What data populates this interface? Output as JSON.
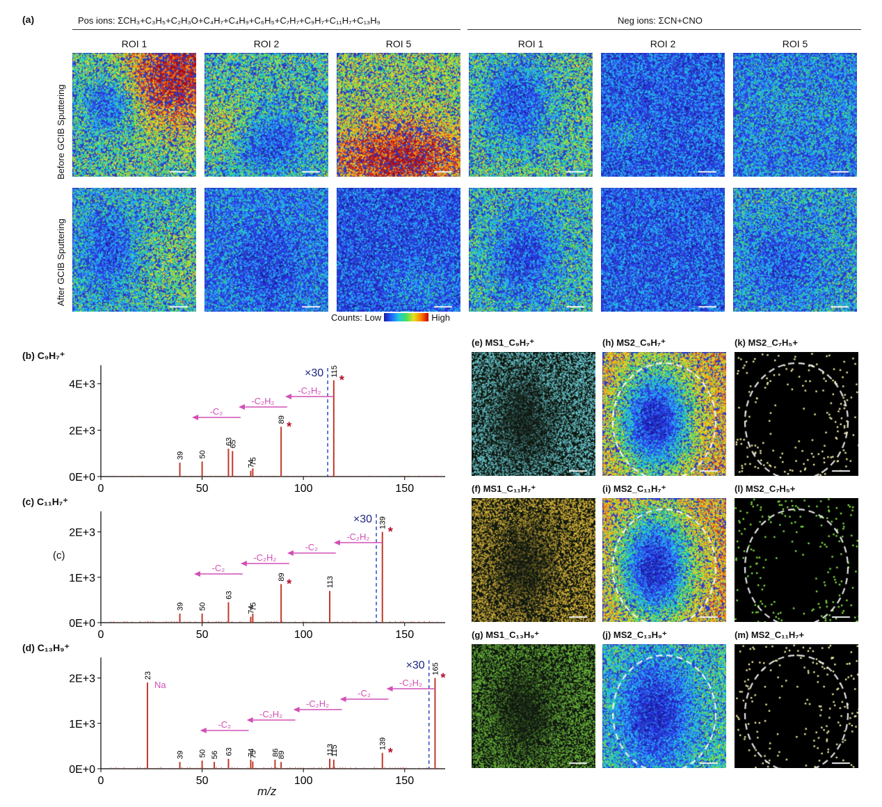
{
  "panel_a": {
    "label": "(a)",
    "pos_header": "Pos ions: ΣCH₃+C₃H₅+C₂H₃O+C₄H₇+C₄H₉+C₆H₅+C₇H₇+C₉H₇+C₁₁H₇+C₁₃H₉",
    "neg_header": "Neg ions: ΣCN+CNO",
    "roi_labels": [
      "ROI 1",
      "ROI 2",
      "ROI 5",
      "ROI 1",
      "ROI 2",
      "ROI 5"
    ],
    "row_labels": [
      "Before GCIB Sputtering",
      "After GCIB Sputtering"
    ],
    "colorbar": {
      "prefix": "Counts: Low",
      "suffix": "High"
    }
  },
  "spectra": {
    "xlabel": "m/z",
    "panels": [
      {
        "label": "(b) C₉H₇⁺",
        "magnify": "×30"
      },
      {
        "label": "(c) C₁₁H₇⁺",
        "magnify": "×30",
        "inner_label": "(c)"
      },
      {
        "label": "(d) C₁₃H₉⁺",
        "magnify": "×30",
        "na_label": "Na"
      }
    ]
  },
  "chart_data": [
    {
      "type": "bar",
      "title": "(b) C₉H₇⁺",
      "xlabel": "m/z",
      "ylabel": "",
      "xlim": [
        0,
        170
      ],
      "ylim": [
        0,
        4500
      ],
      "yticks": [
        "0E+0",
        "2E+3",
        "4E+3"
      ],
      "xticks": [
        "0",
        "50",
        "100",
        "150"
      ],
      "peaks": [
        {
          "x": 39,
          "y": 600,
          "label": "39"
        },
        {
          "x": 50,
          "y": 650,
          "label": "50"
        },
        {
          "x": 63,
          "y": 1200,
          "label": "63"
        },
        {
          "x": 65,
          "y": 1100,
          "label": "65"
        },
        {
          "x": 74,
          "y": 250,
          "label": "74"
        },
        {
          "x": 75,
          "y": 350,
          "label": "75"
        },
        {
          "x": 89,
          "y": 2150,
          "label": "89",
          "star": true
        },
        {
          "x": 115,
          "y": 4150,
          "label": "115",
          "star": true
        }
      ],
      "dashed_x": 112,
      "annotations": [
        "-C₂H₂",
        "-C₂H₂",
        "-C₂"
      ]
    },
    {
      "type": "bar",
      "title": "(c) C₁₁H₇⁺",
      "xlabel": "m/z",
      "ylabel": "",
      "xlim": [
        0,
        170
      ],
      "ylim": [
        0,
        2300
      ],
      "yticks": [
        "0E+0",
        "1E+3",
        "2E+3"
      ],
      "xticks": [
        "0",
        "50",
        "100",
        "150"
      ],
      "peaks": [
        {
          "x": 39,
          "y": 200,
          "label": "39"
        },
        {
          "x": 50,
          "y": 200,
          "label": "50"
        },
        {
          "x": 63,
          "y": 450,
          "label": "63"
        },
        {
          "x": 74,
          "y": 130,
          "label": "74"
        },
        {
          "x": 75,
          "y": 200,
          "label": "75"
        },
        {
          "x": 89,
          "y": 850,
          "label": "89",
          "star": true
        },
        {
          "x": 113,
          "y": 700,
          "label": "113"
        },
        {
          "x": 139,
          "y": 2000,
          "label": "139",
          "star": true
        }
      ],
      "dashed_x": 136,
      "annotations": [
        "-C₂H₂",
        "-C₂",
        "-C₂H₂",
        "-C₂"
      ]
    },
    {
      "type": "bar",
      "title": "(d) C₁₃H₉⁺",
      "xlabel": "m/z",
      "ylabel": "",
      "xlim": [
        0,
        170
      ],
      "ylim": [
        0,
        2300
      ],
      "yticks": [
        "0E+0",
        "1E+3",
        "2E+3"
      ],
      "xticks": [
        "0",
        "50",
        "100",
        "150"
      ],
      "peaks": [
        {
          "x": 23,
          "y": 1900,
          "label": "23"
        },
        {
          "x": 39,
          "y": 150,
          "label": "39"
        },
        {
          "x": 50,
          "y": 180,
          "label": "50"
        },
        {
          "x": 56,
          "y": 150,
          "label": "56"
        },
        {
          "x": 63,
          "y": 220,
          "label": "63"
        },
        {
          "x": 74,
          "y": 200,
          "label": "74"
        },
        {
          "x": 75,
          "y": 160,
          "label": "75"
        },
        {
          "x": 86,
          "y": 200,
          "label": "86"
        },
        {
          "x": 89,
          "y": 150,
          "label": "89"
        },
        {
          "x": 113,
          "y": 220,
          "label": "113"
        },
        {
          "x": 115,
          "y": 200,
          "label": "115"
        },
        {
          "x": 139,
          "y": 350,
          "label": "139",
          "star": true
        },
        {
          "x": 165,
          "y": 2000,
          "label": "165",
          "star": true
        }
      ],
      "dashed_x": 162,
      "annotations": [
        "-C₂H₂",
        "-C₂",
        "-C₂H₂",
        "-C₂H₂",
        "-C₂"
      ]
    }
  ],
  "maps": {
    "tiles": [
      {
        "title": "(e) MS1_C₉H₇⁺",
        "scheme": "cyan"
      },
      {
        "title": "(h) MS2_C₉H₇⁺",
        "scheme": "jet"
      },
      {
        "title": "(k) MS2_C₇H₅+",
        "scheme": "dots-yellow"
      },
      {
        "title": "(f) MS1_C₁₁H₇⁺",
        "scheme": "gold"
      },
      {
        "title": "(i) MS2_C₁₁H₇⁺",
        "scheme": "jet"
      },
      {
        "title": "(l) MS2_C₇H₅+",
        "scheme": "dots-green"
      },
      {
        "title": "(g) MS1_C₁₃H₉⁺",
        "scheme": "green"
      },
      {
        "title": "(j) MS2_C₁₃H₉⁺",
        "scheme": "jet-dark"
      },
      {
        "title": "(m) MS2_C₁₁H₇+",
        "scheme": "dots-yellow"
      }
    ]
  },
  "colors": {
    "peak": "#c0392b",
    "arrow": "#d24fb6",
    "dash": "#1f3fbf",
    "star": "#b0102a",
    "magnify": "#1a237e"
  }
}
